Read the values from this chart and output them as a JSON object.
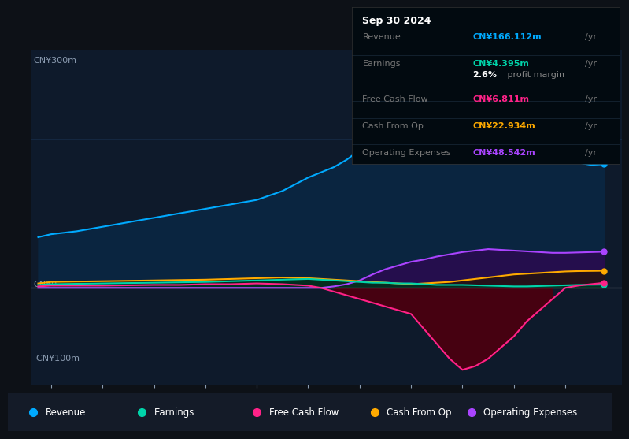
{
  "bg_color": "#0d1117",
  "chart_bg": "#0e1a2b",
  "grid_color": "#1e3a5f",
  "text_color": "#8a9bb0",
  "ylabel_300": "CN¥300m",
  "ylabel_0": "CN¥0",
  "ylabel_neg100": "-CN¥100m",
  "years": [
    2013.75,
    2014.0,
    2014.5,
    2015.0,
    2015.5,
    2016.0,
    2016.5,
    2017.0,
    2017.5,
    2018.0,
    2018.5,
    2019.0,
    2019.25,
    2019.5,
    2019.75,
    2020.0,
    2020.25,
    2020.5,
    2020.75,
    2021.0,
    2021.25,
    2021.5,
    2021.75,
    2022.0,
    2022.25,
    2022.5,
    2022.75,
    2023.0,
    2023.25,
    2023.5,
    2023.75,
    2024.0,
    2024.25,
    2024.5,
    2024.75
  ],
  "revenue": [
    68,
    72,
    76,
    82,
    88,
    94,
    100,
    106,
    112,
    118,
    130,
    148,
    155,
    162,
    172,
    185,
    195,
    205,
    215,
    225,
    240,
    255,
    265,
    272,
    268,
    255,
    238,
    220,
    205,
    195,
    180,
    170,
    168,
    165,
    166
  ],
  "earnings": [
    4,
    5,
    5.5,
    6,
    6.5,
    7,
    7.5,
    8,
    9,
    10,
    11,
    12,
    11,
    10,
    9,
    8,
    7,
    7,
    6,
    6,
    5,
    4,
    4,
    4,
    3.5,
    3,
    2.5,
    2,
    2,
    2.5,
    3,
    3.5,
    4,
    4.2,
    4.4
  ],
  "free_cash_flow": [
    2,
    3,
    3,
    3,
    3.5,
    4,
    4,
    5,
    5,
    6,
    5,
    3,
    0,
    -5,
    -10,
    -15,
    -20,
    -25,
    -30,
    -35,
    -55,
    -75,
    -95,
    -110,
    -105,
    -95,
    -80,
    -65,
    -45,
    -30,
    -15,
    0,
    3,
    5,
    6.8
  ],
  "cash_from_op": [
    6,
    8,
    8.5,
    9,
    9.5,
    10,
    10.5,
    11,
    12,
    13,
    14,
    13,
    12,
    11,
    10,
    9,
    8,
    7,
    6,
    5,
    6,
    7,
    8,
    10,
    12,
    14,
    16,
    18,
    19,
    20,
    21,
    22,
    22.5,
    22.7,
    22.9
  ],
  "operating_expenses": [
    0,
    0,
    0,
    0,
    0,
    0,
    0,
    0,
    0,
    0,
    0,
    0,
    0,
    2,
    5,
    10,
    18,
    25,
    30,
    35,
    38,
    42,
    45,
    48,
    50,
    52,
    51,
    50,
    49,
    48,
    47,
    47,
    47.5,
    48,
    48.5
  ],
  "revenue_color": "#00aaff",
  "earnings_color": "#00d4aa",
  "fcf_color": "#ff2288",
  "cashop_color": "#ffaa00",
  "opex_color": "#aa44ff",
  "revenue_fill": "#0a2540",
  "fcf_fill_neg": "#4a0010",
  "opex_fill": "#2a0a50",
  "legend_items": [
    "Revenue",
    "Earnings",
    "Free Cash Flow",
    "Cash From Op",
    "Operating Expenses"
  ],
  "legend_colors": [
    "#00aaff",
    "#00d4aa",
    "#ff2288",
    "#ffaa00",
    "#aa44ff"
  ],
  "table_date": "Sep 30 2024",
  "ylim": [
    -130,
    320
  ],
  "xlim": [
    2013.6,
    2025.1
  ],
  "xticks": [
    2014,
    2015,
    2016,
    2017,
    2018,
    2019,
    2020,
    2021,
    2022,
    2023,
    2024
  ]
}
